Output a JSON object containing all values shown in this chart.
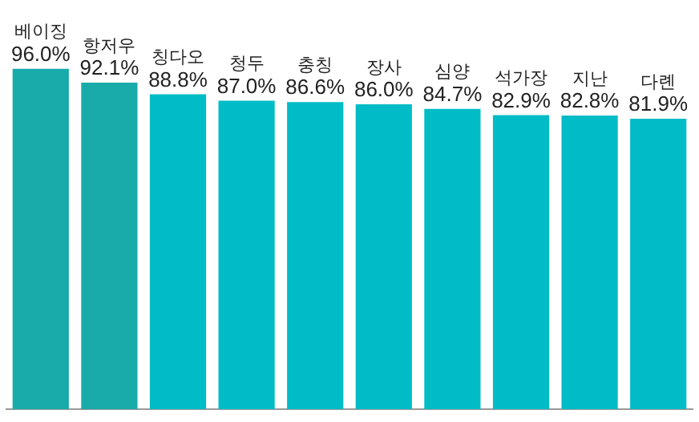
{
  "chart_data": {
    "type": "bar",
    "categories": [
      "베이징",
      "항저우",
      "칭다오",
      "청두",
      "충칭",
      "장사",
      "심양",
      "석가장",
      "지난",
      "다롄"
    ],
    "values": [
      96.0,
      92.1,
      88.8,
      87.0,
      86.6,
      86.0,
      84.7,
      82.9,
      82.8,
      81.9
    ],
    "value_labels": [
      "96.0%",
      "92.1%",
      "88.8%",
      "87.0%",
      "86.6%",
      "86.0%",
      "84.7%",
      "82.9%",
      "82.8%",
      "81.9%"
    ],
    "colors": [
      "#19aaaa",
      "#19aaaa",
      "#00bcc6",
      "#00bcc6",
      "#00bcc6",
      "#00bcc6",
      "#00bcc6",
      "#00bcc6",
      "#00bcc6",
      "#00bcc6"
    ],
    "grid": false,
    "legend": false
  }
}
